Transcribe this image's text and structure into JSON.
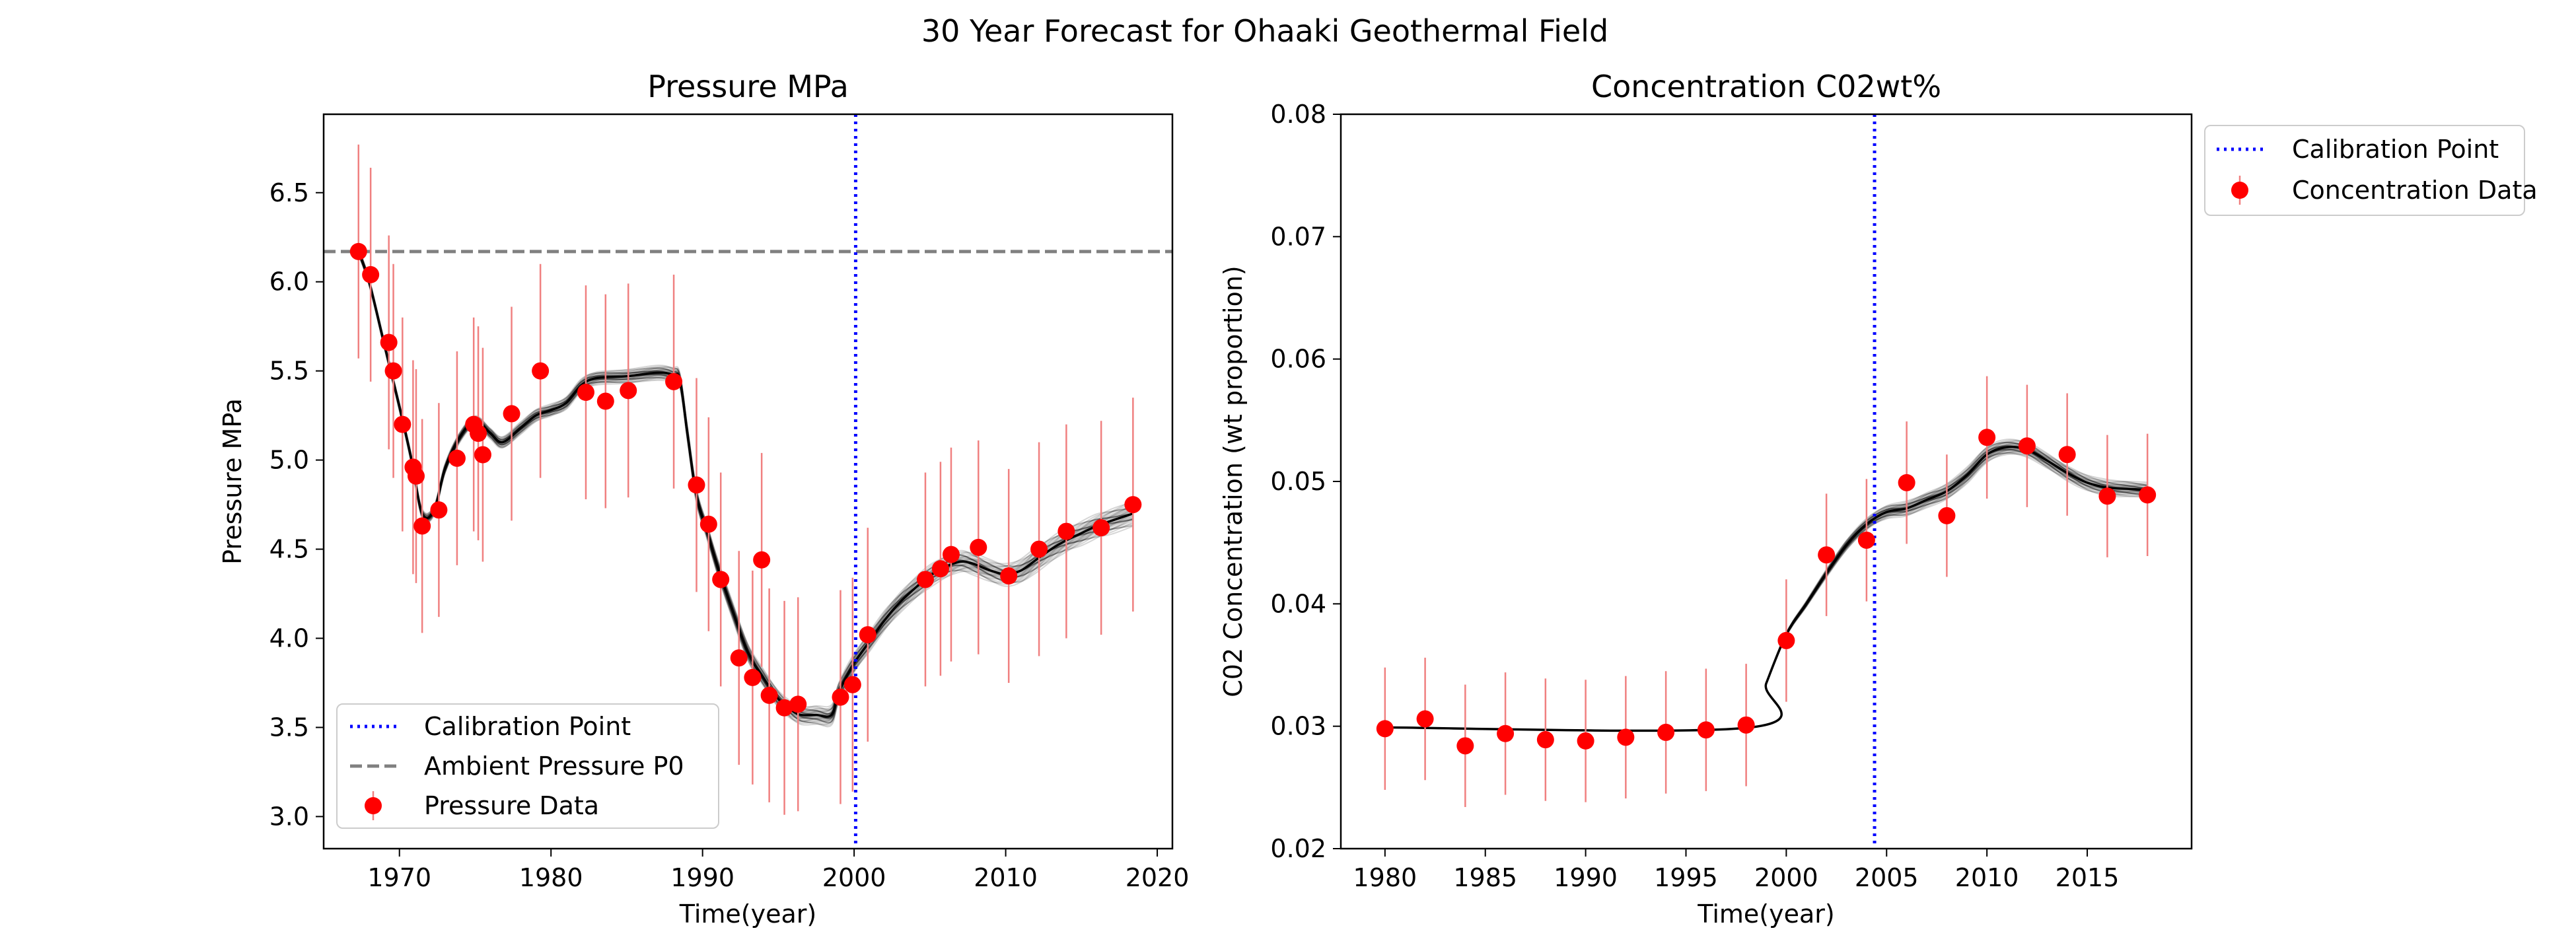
{
  "figure": {
    "suptitle": "30 Year Forecast for Ohaaki Geothermal Field"
  },
  "colors": {
    "data_points": "#ff0000",
    "error_bars": "#f08080",
    "calibration_line": "#0000ff",
    "ambient_line": "#808080",
    "forecast_lines": "#000000"
  },
  "chart_data": [
    {
      "type": "scatter",
      "title": "Pressure MPa",
      "xlabel": "Time(year)",
      "ylabel": "Pressure MPa",
      "xlim": [
        1965,
        2021
      ],
      "ylim": [
        2.82,
        6.94
      ],
      "xticks": [
        1970,
        1980,
        1990,
        2000,
        2010,
        2020
      ],
      "yticks": [
        3.0,
        3.5,
        4.0,
        4.5,
        5.0,
        5.5,
        6.0,
        6.5
      ],
      "ytick_labels": [
        "3.0",
        "3.5",
        "4.0",
        "4.5",
        "5.0",
        "5.5",
        "6.0",
        "6.5"
      ],
      "legend_position": "lower left",
      "calibration_x": 2000.1,
      "ambient_pressure": 6.17,
      "legend": [
        "Calibration Point",
        "Ambient Pressure P0",
        "Pressure Data"
      ],
      "data": {
        "x": [
          1967.3,
          1968.1,
          1969.3,
          1969.6,
          1970.2,
          1970.9,
          1971.1,
          1971.5,
          1972.6,
          1973.8,
          1974.9,
          1975.2,
          1975.5,
          1977.4,
          1979.3,
          1982.3,
          1983.6,
          1985.1,
          1988.1,
          1989.6,
          1990.4,
          1991.2,
          1992.4,
          1993.3,
          1993.9,
          1994.4,
          1995.4,
          1996.3,
          1999.1,
          1999.9,
          2000.9,
          2004.7,
          2005.7,
          2006.4,
          2008.2,
          2010.2,
          2012.2,
          2014.0,
          2016.3,
          2018.4
        ],
        "y": [
          6.17,
          6.04,
          5.66,
          5.5,
          5.2,
          4.96,
          4.91,
          4.63,
          4.72,
          5.01,
          5.2,
          5.15,
          5.03,
          5.26,
          5.5,
          5.38,
          5.33,
          5.39,
          5.44,
          4.86,
          4.64,
          4.33,
          3.89,
          3.78,
          4.44,
          3.68,
          3.61,
          3.63,
          3.67,
          3.74,
          4.02,
          4.33,
          4.39,
          4.47,
          4.51,
          4.35,
          4.5,
          4.6,
          4.62,
          4.75
        ],
        "error": 0.6
      },
      "forecast_median": {
        "x": [
          1967.3,
          1968.0,
          1969.0,
          1970.0,
          1970.8,
          1971.5,
          1972.3,
          1973.0,
          1974.0,
          1975.0,
          1976.0,
          1976.8,
          1978.0,
          1979.0,
          1980.0,
          1981.0,
          1982.0,
          1983.0,
          1985.0,
          1987.0,
          1988.0,
          1988.5,
          1989.0,
          1989.6,
          1990.3,
          1991.0,
          1992.0,
          1993.0,
          1994.0,
          1995.0,
          1995.8,
          1996.5,
          1997.5,
          1998.5,
          1999.0,
          2000.0,
          2001.0,
          2002.0,
          2003.0,
          2004.0,
          2005.0,
          2006.0,
          2007.0,
          2007.8,
          2009.0,
          2010.0,
          2011.0,
          2012.0,
          2013.0,
          2014.0,
          2015.0,
          2016.0,
          2017.0,
          2018.4
        ],
        "y": [
          6.17,
          6.0,
          5.65,
          5.3,
          5.0,
          4.7,
          4.72,
          4.95,
          5.13,
          5.22,
          5.15,
          5.1,
          5.18,
          5.25,
          5.28,
          5.32,
          5.42,
          5.46,
          5.47,
          5.49,
          5.48,
          5.45,
          5.15,
          4.8,
          4.6,
          4.4,
          4.15,
          3.92,
          3.78,
          3.66,
          3.6,
          3.57,
          3.57,
          3.57,
          3.7,
          3.86,
          3.98,
          4.1,
          4.2,
          4.28,
          4.35,
          4.4,
          4.43,
          4.42,
          4.38,
          4.36,
          4.38,
          4.44,
          4.5,
          4.55,
          4.59,
          4.63,
          4.66,
          4.7
        ]
      }
    },
    {
      "type": "scatter",
      "title": "Concentration C02wt%",
      "xlabel": "Time(year)",
      "ylabel": "C02 Concentration (wt proportion)",
      "xlim": [
        1977.8,
        2020.2
      ],
      "ylim": [
        0.02,
        0.08
      ],
      "xticks": [
        1980,
        1985,
        1990,
        1995,
        2000,
        2005,
        2010,
        2015
      ],
      "yticks": [
        0.02,
        0.03,
        0.04,
        0.05,
        0.06,
        0.07,
        0.08
      ],
      "ytick_labels": [
        "0.02",
        "0.03",
        "0.04",
        "0.05",
        "0.06",
        "0.07",
        "0.08"
      ],
      "legend_position": "outside upper right",
      "calibration_x": 2004.4,
      "legend": [
        "Calibration Point",
        "Concentration Data"
      ],
      "data": {
        "x": [
          1980,
          1982,
          1984,
          1986,
          1988,
          1990,
          1992,
          1994,
          1996,
          1998,
          2000,
          2002,
          2004,
          2006,
          2008,
          2010,
          2012,
          2014,
          2016,
          2018
        ],
        "y": [
          0.0298,
          0.0306,
          0.0284,
          0.0294,
          0.0289,
          0.0288,
          0.0291,
          0.0295,
          0.0297,
          0.0301,
          0.037,
          0.044,
          0.0452,
          0.0499,
          0.0472,
          0.0536,
          0.0529,
          0.0522,
          0.0488,
          0.0489
        ],
        "error": 0.005
      },
      "forecast_median": {
        "x": [
          1980.0,
          1998.2,
          1999.0,
          2000.0,
          2001.0,
          2002.0,
          2003.0,
          2004.0,
          2005.0,
          2006.0,
          2007.0,
          2008.0,
          2009.0,
          2010.0,
          2011.0,
          2012.0,
          2013.0,
          2014.0,
          2015.0,
          2016.0,
          2017.0,
          2018.0
        ],
        "y": [
          0.0299,
          0.0299,
          0.0335,
          0.0375,
          0.04,
          0.0425,
          0.0448,
          0.0465,
          0.0475,
          0.0478,
          0.0485,
          0.0492,
          0.0505,
          0.0522,
          0.0528,
          0.0526,
          0.0517,
          0.0507,
          0.0499,
          0.0495,
          0.0494,
          0.0493
        ]
      }
    }
  ]
}
